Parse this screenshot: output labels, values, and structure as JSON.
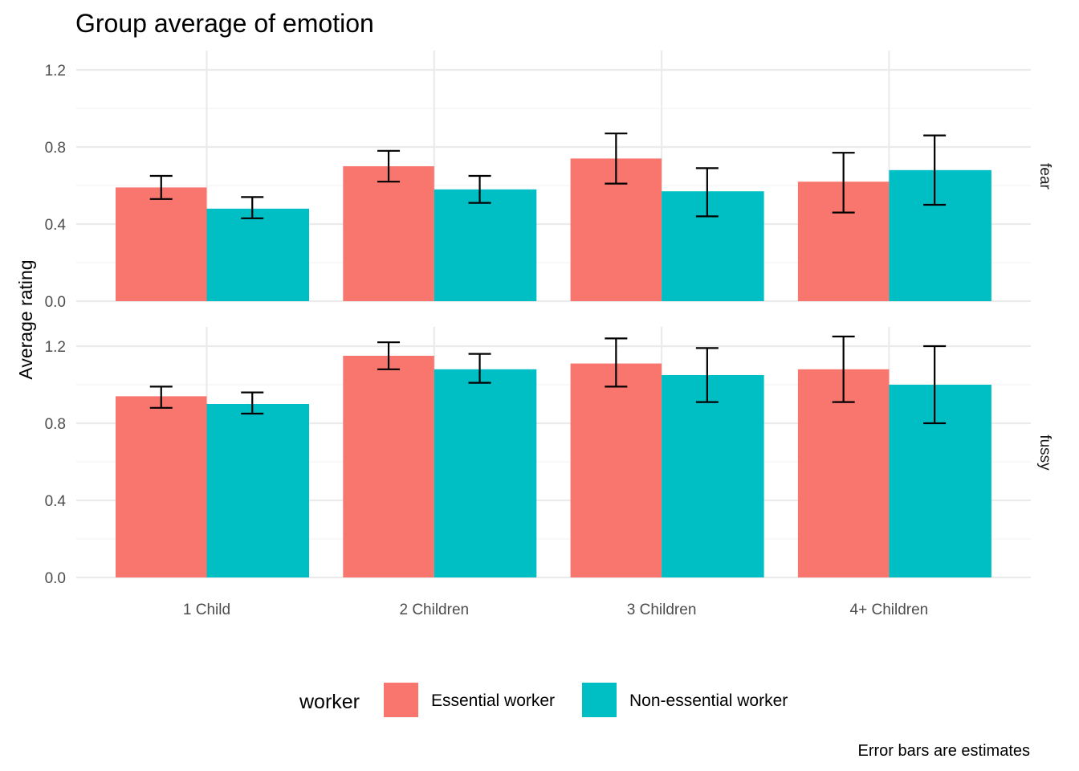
{
  "chart_data": {
    "type": "bar",
    "title": "Group average of emotion",
    "ylabel": "Average rating",
    "xlabel": "",
    "caption": "Error bars are estimates",
    "categories": [
      "1 Child",
      "2 Children",
      "3 Children",
      "4+ Children"
    ],
    "ylim": [
      0,
      1.2
    ],
    "yticks": [
      "0.0",
      "0.4",
      "0.8",
      "1.2"
    ],
    "legend": {
      "title": "worker",
      "position": "bottom",
      "items": [
        {
          "name": "Essential worker",
          "color": "#F8766D"
        },
        {
          "name": "Non-essential worker",
          "color": "#00BFC4"
        }
      ]
    },
    "grid": true,
    "facets": [
      {
        "label": "fear",
        "series": [
          {
            "name": "Essential worker",
            "values": [
              0.59,
              0.7,
              0.74,
              0.62
            ],
            "err_low": [
              0.53,
              0.62,
              0.61,
              0.46
            ],
            "err_high": [
              0.65,
              0.78,
              0.87,
              0.77
            ]
          },
          {
            "name": "Non-essential worker",
            "values": [
              0.48,
              0.58,
              0.57,
              0.68
            ],
            "err_low": [
              0.43,
              0.51,
              0.44,
              0.5
            ],
            "err_high": [
              0.54,
              0.65,
              0.69,
              0.86
            ]
          }
        ]
      },
      {
        "label": "fussy",
        "series": [
          {
            "name": "Essential worker",
            "values": [
              0.94,
              1.15,
              1.11,
              1.08
            ],
            "err_low": [
              0.88,
              1.08,
              0.99,
              0.91
            ],
            "err_high": [
              0.99,
              1.22,
              1.24,
              1.25
            ]
          },
          {
            "name": "Non-essential worker",
            "values": [
              0.9,
              1.08,
              1.05,
              1.0
            ],
            "err_low": [
              0.85,
              1.01,
              0.91,
              0.8
            ],
            "err_high": [
              0.96,
              1.16,
              1.19,
              1.2
            ]
          }
        ]
      }
    ]
  }
}
